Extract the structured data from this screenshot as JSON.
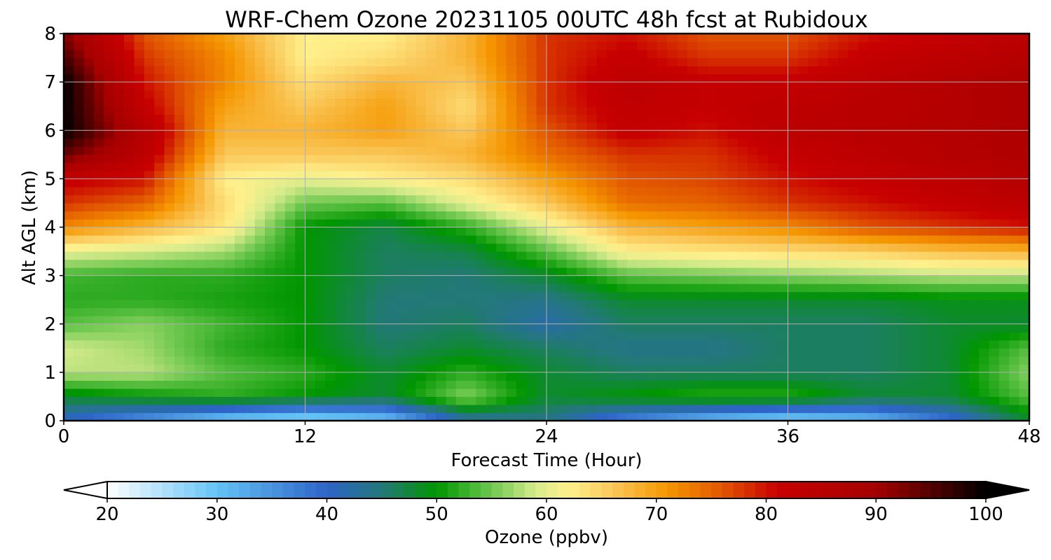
{
  "chart_data": {
    "type": "heatmap",
    "title": "WRF-Chem Ozone  20231105 00UTC 48h fcst at Rubidoux",
    "xlabel": "Forecast Time (Hour)",
    "ylabel": "Alt AGL (km)",
    "x_ticks": [
      0,
      12,
      24,
      36,
      48
    ],
    "y_ticks": [
      0,
      1,
      2,
      3,
      4,
      5,
      6,
      7,
      8
    ],
    "xlim": [
      0,
      48
    ],
    "ylim": [
      0,
      8
    ],
    "grid": true,
    "x": [
      0,
      4,
      8,
      12,
      16,
      20,
      24,
      28,
      32,
      36,
      40,
      44,
      48
    ],
    "y": [
      0,
      0.5,
      1,
      1.5,
      2,
      2.5,
      3,
      3.5,
      4,
      4.5,
      5,
      5.5,
      6,
      6.5,
      7,
      7.5,
      8
    ],
    "z": [
      [
        40,
        34,
        28,
        26,
        29,
        42,
        44,
        36,
        30,
        27,
        30,
        38,
        48
      ],
      [
        48,
        50,
        52,
        50,
        48,
        56,
        48,
        50,
        52,
        52,
        48,
        48,
        54
      ],
      [
        58,
        58,
        54,
        52,
        48,
        52,
        48,
        46,
        46,
        46,
        46,
        48,
        56
      ],
      [
        59,
        57,
        52,
        50,
        46,
        48,
        46,
        44,
        44,
        46,
        46,
        48,
        54
      ],
      [
        54,
        56,
        53,
        50,
        45,
        46,
        42,
        46,
        46,
        46,
        46,
        48,
        48
      ],
      [
        52,
        52,
        51,
        50,
        45,
        45,
        44,
        48,
        48,
        48,
        48,
        49,
        49
      ],
      [
        53,
        52,
        52,
        50,
        46,
        45,
        48,
        54,
        55,
        56,
        57,
        58,
        58
      ],
      [
        60,
        59,
        57,
        50,
        46,
        47,
        54,
        62,
        63,
        64,
        65,
        67,
        68
      ],
      [
        72,
        68,
        63,
        50,
        47,
        52,
        60,
        68,
        70,
        72,
        76,
        78,
        80
      ],
      [
        78,
        75,
        64,
        55,
        54,
        60,
        66,
        74,
        75,
        78,
        80,
        82,
        84
      ],
      [
        82,
        80,
        62,
        60,
        62,
        64,
        70,
        76,
        77,
        80,
        82,
        84,
        86
      ],
      [
        94,
        84,
        66,
        66,
        66,
        68,
        74,
        78,
        78,
        82,
        84,
        86,
        87
      ],
      [
        100,
        86,
        68,
        68,
        70,
        66,
        76,
        82,
        80,
        84,
        85,
        86,
        88
      ],
      [
        100,
        82,
        70,
        66,
        70,
        64,
        78,
        83,
        82,
        84,
        85,
        86,
        88
      ],
      [
        100,
        80,
        72,
        64,
        68,
        66,
        78,
        84,
        82,
        82,
        84,
        86,
        88
      ],
      [
        96,
        78,
        72,
        62,
        64,
        68,
        78,
        82,
        78,
        78,
        82,
        84,
        86
      ],
      [
        92,
        76,
        70,
        62,
        62,
        68,
        78,
        80,
        76,
        76,
        80,
        82,
        84
      ]
    ],
    "colorbar": {
      "label": "Ozone  (ppbv)",
      "min": 20,
      "max": 100,
      "ticks": [
        20,
        30,
        40,
        50,
        60,
        70,
        80,
        90,
        100
      ],
      "extend": "both"
    }
  }
}
